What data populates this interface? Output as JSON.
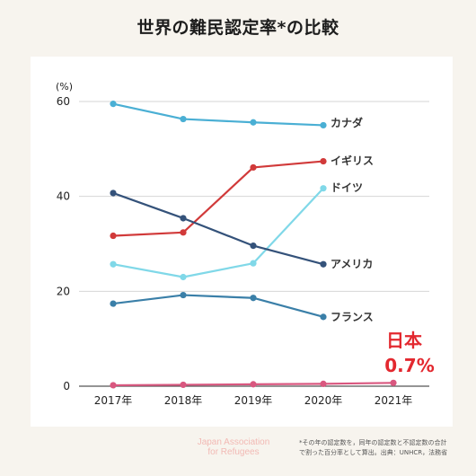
{
  "title": "世界の難民認定率*の比較",
  "footer": {
    "org_line1": "Japan Association",
    "org_line2": "for Refugees",
    "note_line1": "*その年の認定数を，同年の認定数と不認定数の合計",
    "note_line2": "で割った百分率として算出。出典：UNHCR，法務省"
  },
  "chart_data": {
    "type": "line",
    "title": "世界の難民認定率*の比較",
    "ylabel": "(%)",
    "xlabel": "",
    "categories": [
      "2017年",
      "2018年",
      "2019年",
      "2020年",
      "2021年"
    ],
    "ylim": [
      0,
      60
    ],
    "yticks": [
      0,
      20,
      40,
      60
    ],
    "grid": true,
    "series": [
      {
        "name": "カナダ",
        "color": "#4aafd4",
        "values": [
          59.5,
          56.3,
          55.6,
          55.0,
          null
        ]
      },
      {
        "name": "イギリス",
        "color": "#d13a3a",
        "values": [
          31.7,
          32.4,
          46.1,
          47.4,
          null
        ]
      },
      {
        "name": "ドイツ",
        "color": "#80d8e8",
        "values": [
          25.7,
          23.0,
          25.9,
          41.7,
          null
        ]
      },
      {
        "name": "アメリカ",
        "color": "#34527a",
        "values": [
          40.7,
          35.4,
          29.6,
          25.7,
          null
        ]
      },
      {
        "name": "フランス",
        "color": "#3a7fa8",
        "values": [
          17.4,
          19.2,
          18.6,
          14.6,
          null
        ]
      },
      {
        "name": "日本",
        "color": "#d9577f",
        "values": [
          0.2,
          0.3,
          0.4,
          0.5,
          0.7
        ]
      }
    ],
    "highlight": {
      "series": "日本",
      "label": "日本",
      "value_label": "0.7%"
    }
  }
}
